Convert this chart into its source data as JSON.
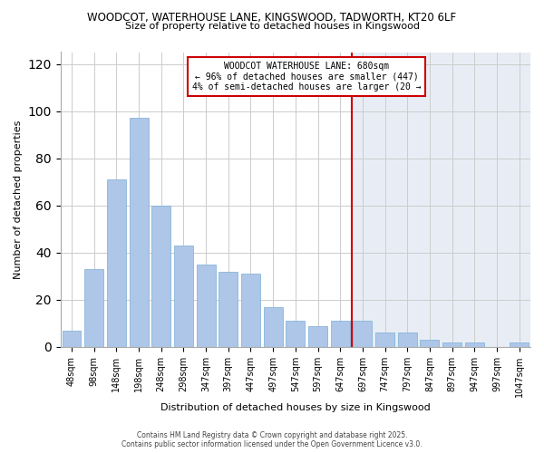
{
  "title_line1": "WOODCOT, WATERHOUSE LANE, KINGSWOOD, TADWORTH, KT20 6LF",
  "title_line2": "Size of property relative to detached houses in Kingswood",
  "xlabel": "Distribution of detached houses by size in Kingswood",
  "ylabel": "Number of detached properties",
  "categories": [
    "48sqm",
    "98sqm",
    "148sqm",
    "198sqm",
    "248sqm",
    "298sqm",
    "347sqm",
    "397sqm",
    "447sqm",
    "497sqm",
    "547sqm",
    "597sqm",
    "647sqm",
    "697sqm",
    "747sqm",
    "797sqm",
    "847sqm",
    "897sqm",
    "947sqm",
    "997sqm",
    "1047sqm"
  ],
  "values": [
    7,
    33,
    71,
    97,
    60,
    43,
    35,
    32,
    31,
    17,
    11,
    9,
    11,
    11,
    6,
    6,
    3,
    2,
    2,
    0,
    2
  ],
  "bar_color": "#aec6e8",
  "bar_edgecolor": "#7aaed4",
  "highlight_line_color": "#cc0000",
  "split_index": 12,
  "annotation_lines": [
    "WOODCOT WATERHOUSE LANE: 680sqm",
    "← 96% of detached houses are smaller (447)",
    "4% of semi-detached houses are larger (20 →"
  ],
  "annotation_box_edgecolor": "#cc0000",
  "annotation_box_facecolor": "#ffffff",
  "ylim": [
    0,
    125
  ],
  "yticks": [
    0,
    20,
    40,
    60,
    80,
    100,
    120
  ],
  "bg_color_left": "#ffffff",
  "bg_color_right": "#e8edf5",
  "grid_color": "#cccccc",
  "footer_line1": "Contains HM Land Registry data © Crown copyright and database right 2025.",
  "footer_line2": "Contains public sector information licensed under the Open Government Licence v3.0."
}
